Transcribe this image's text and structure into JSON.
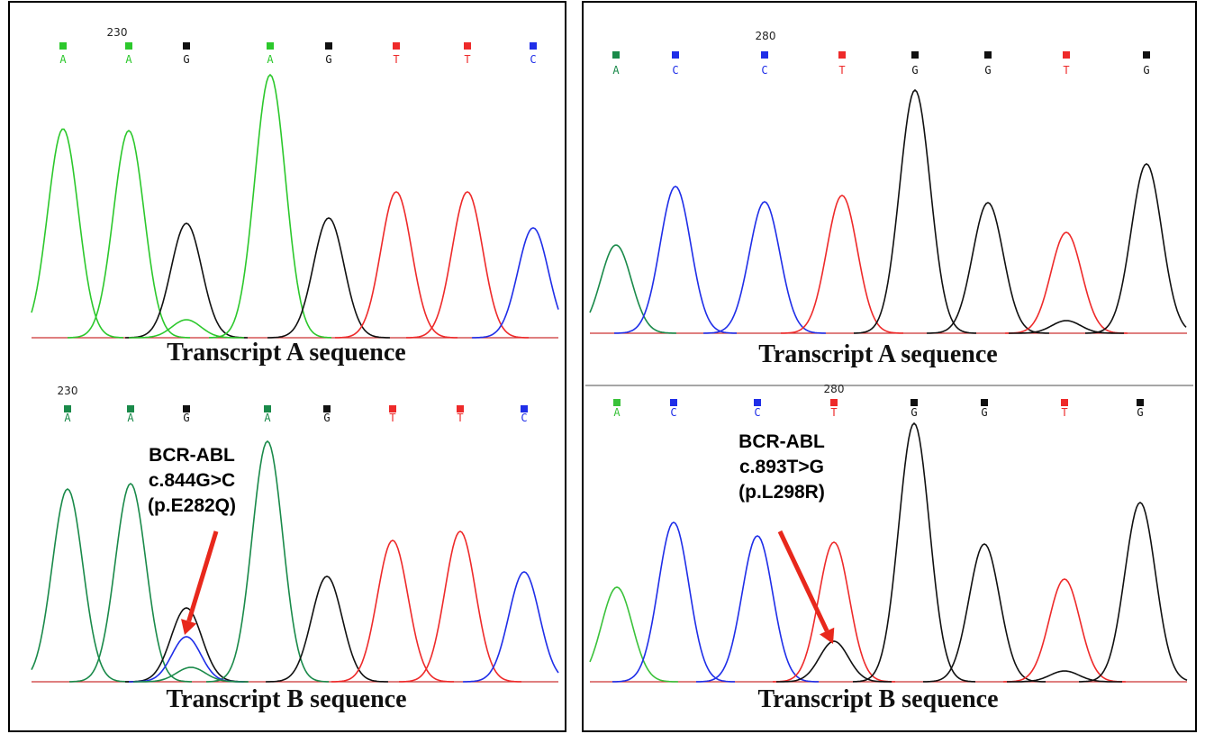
{
  "panels": [
    {
      "sections": [
        {
          "position_label": "230",
          "bases": [
            "A",
            "A",
            "G",
            "A",
            "G",
            "T",
            "T",
            "C"
          ],
          "caption": "Transcript A sequence"
        },
        {
          "position_label": "230",
          "bases": [
            "A",
            "A",
            "G",
            "A",
            "G",
            "T",
            "T",
            "C"
          ],
          "annotation": [
            "BCR-ABL",
            "c.844G>C",
            "(p.E282Q)"
          ],
          "caption": "Transcript B sequence"
        }
      ]
    },
    {
      "sections": [
        {
          "position_label": "280",
          "bases": [
            "A",
            "C",
            "C",
            "T",
            "G",
            "G",
            "T",
            "G"
          ],
          "caption": "Transcript A sequence"
        },
        {
          "position_label": "280",
          "bases": [
            "A",
            "C",
            "C",
            "T",
            "G",
            "G",
            "T",
            "G"
          ],
          "annotation": [
            "BCR-ABL",
            "c.893T>G",
            "(p.L298R)"
          ],
          "caption": "Transcript B sequence"
        }
      ]
    }
  ]
}
